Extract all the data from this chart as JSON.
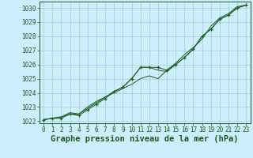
{
  "background_color": "#cceeff",
  "grid_color": "#aacccc",
  "line_color": "#1a5c1a",
  "x_values": [
    0,
    1,
    2,
    3,
    4,
    5,
    6,
    7,
    8,
    9,
    10,
    11,
    12,
    13,
    14,
    15,
    16,
    17,
    18,
    19,
    20,
    21,
    22,
    23
  ],
  "series1": [
    1022.1,
    1022.2,
    1022.2,
    1022.5,
    1022.4,
    1022.8,
    1023.2,
    1023.6,
    1024.1,
    1024.4,
    1025.0,
    1025.8,
    1025.8,
    1025.8,
    1025.6,
    1026.0,
    1026.5,
    1027.1,
    1028.0,
    1028.5,
    1029.2,
    1029.5,
    1030.0,
    1030.2
  ],
  "series2": [
    1022.1,
    1022.2,
    1022.3,
    1022.5,
    1022.5,
    1023.0,
    1023.4,
    1023.7,
    1024.0,
    1024.3,
    1024.6,
    1025.0,
    1025.2,
    1025.0,
    1025.6,
    1026.1,
    1026.7,
    1027.2,
    1027.8,
    1028.7,
    1029.3,
    1029.6,
    1030.1,
    1030.2
  ],
  "series3": [
    1022.1,
    1022.2,
    1022.3,
    1022.6,
    1022.5,
    1022.9,
    1023.3,
    1023.7,
    1024.1,
    1024.4,
    1025.0,
    1025.8,
    1025.8,
    1025.6,
    1025.5,
    1026.0,
    1026.5,
    1027.1,
    1028.0,
    1028.5,
    1029.2,
    1029.5,
    1030.0,
    1030.2
  ],
  "ylim": [
    1021.85,
    1030.45
  ],
  "yticks": [
    1022,
    1023,
    1024,
    1025,
    1026,
    1027,
    1028,
    1029,
    1030
  ],
  "xlim": [
    -0.5,
    23.5
  ],
  "xticks": [
    0,
    1,
    2,
    3,
    4,
    5,
    6,
    7,
    8,
    9,
    10,
    11,
    12,
    13,
    14,
    15,
    16,
    17,
    18,
    19,
    20,
    21,
    22,
    23
  ],
  "xlabel": "Graphe pression niveau de la mer (hPa)",
  "tick_fontsize": 5.5,
  "label_fontsize": 7.5
}
